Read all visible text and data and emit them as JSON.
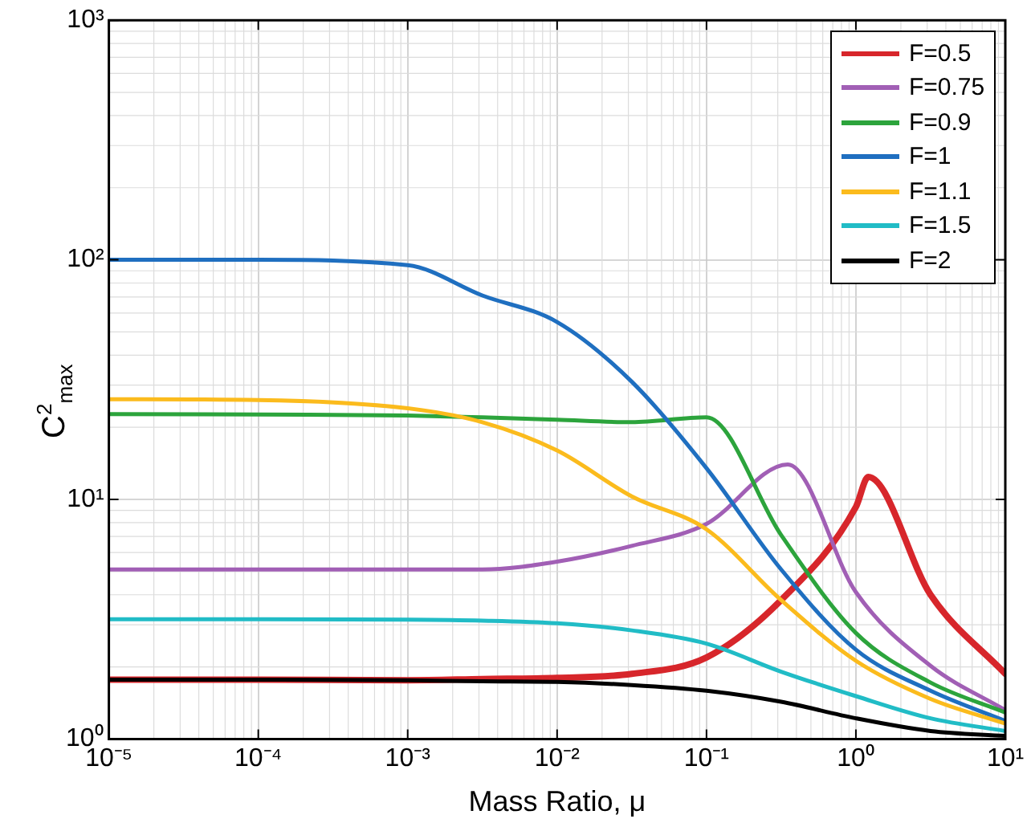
{
  "chart_data": {
    "type": "line",
    "xlabel": "Mass Ratio, μ",
    "ylabel": "C$^{2}$$_{max}$",
    "log": "xy",
    "grid": true,
    "legend": "top right",
    "marker": "none",
    "line_style": "solid",
    "xlim": [
      1e-05,
      10
    ],
    "ylim": [
      1,
      1000
    ],
    "xticks": [
      {
        "value": 1e-05,
        "label": "10⁻⁵"
      },
      {
        "value": 0.0001,
        "label": "10⁻⁴"
      },
      {
        "value": 0.001,
        "label": "10⁻³"
      },
      {
        "value": 0.01,
        "label": "10⁻²"
      },
      {
        "value": 0.1,
        "label": "10⁻¹"
      },
      {
        "value": 1,
        "label": "10⁰"
      },
      {
        "value": 10,
        "label": "10¹"
      }
    ],
    "yticks": [
      {
        "value": 1,
        "label": "10⁰"
      },
      {
        "value": 10,
        "label": "10¹"
      },
      {
        "value": 100,
        "label": "10²"
      },
      {
        "value": 1000,
        "label": "10³"
      }
    ],
    "series": [
      {
        "name": "F=0.5",
        "color": "#d7262b",
        "x": [
          1e-05,
          0.0001,
          0.001,
          0.00316,
          0.01,
          0.0316,
          0.1,
          0.316,
          1,
          1.21,
          3.16,
          10
        ],
        "values": [
          1.77,
          1.77,
          1.76,
          1.78,
          1.8,
          1.87,
          2.19,
          3.8,
          9.3,
          12.4,
          4.0,
          1.87
        ]
      },
      {
        "name": "F=0.75",
        "color": "#a15fb5",
        "x": [
          1e-05,
          0.0001,
          0.001,
          0.00316,
          0.01,
          0.0316,
          0.1,
          0.35,
          1,
          3.16,
          10
        ],
        "values": [
          5.1,
          5.1,
          5.1,
          5.1,
          5.5,
          6.4,
          7.9,
          14.0,
          4.1,
          2.02,
          1.32
        ]
      },
      {
        "name": "F=0.9",
        "color": "#2ca43c",
        "x": [
          1e-05,
          0.0001,
          0.001,
          0.00316,
          0.01,
          0.0316,
          0.1,
          0.316,
          1,
          3.16,
          10
        ],
        "values": [
          22.7,
          22.6,
          22.4,
          22,
          21.5,
          21,
          22,
          7.1,
          2.77,
          1.72,
          1.29
        ]
      },
      {
        "name": "F=1",
        "color": "#1f6fc0",
        "x": [
          1e-05,
          0.0001,
          0.001,
          0.00316,
          0.01,
          0.0316,
          0.1,
          0.316,
          1,
          3.16,
          10
        ],
        "values": [
          100,
          100,
          95,
          71,
          55,
          31,
          13.5,
          5.1,
          2.36,
          1.59,
          1.19
        ]
      },
      {
        "name": "F=1.1",
        "color": "#fbbb1d",
        "x": [
          1e-05,
          0.0001,
          0.001,
          0.00316,
          0.01,
          0.0316,
          0.1,
          0.316,
          1,
          3.16,
          10
        ],
        "values": [
          26.2,
          26,
          24,
          21,
          16,
          10.3,
          7.5,
          3.8,
          2.12,
          1.47,
          1.16
        ]
      },
      {
        "name": "F=1.5",
        "color": "#21bcc6",
        "x": [
          1e-05,
          0.0001,
          0.001,
          0.00316,
          0.01,
          0.0316,
          0.1,
          0.316,
          1,
          3.16,
          10
        ],
        "values": [
          3.16,
          3.16,
          3.15,
          3.12,
          3.04,
          2.84,
          2.5,
          1.91,
          1.51,
          1.22,
          1.08
        ]
      },
      {
        "name": "F=2",
        "color": "#000000",
        "x": [
          1e-05,
          0.0001,
          0.001,
          0.00316,
          0.01,
          0.0316,
          0.1,
          0.316,
          1,
          3.16,
          10
        ],
        "values": [
          1.77,
          1.77,
          1.76,
          1.74,
          1.73,
          1.68,
          1.59,
          1.43,
          1.22,
          1.08,
          1.03
        ]
      }
    ]
  }
}
